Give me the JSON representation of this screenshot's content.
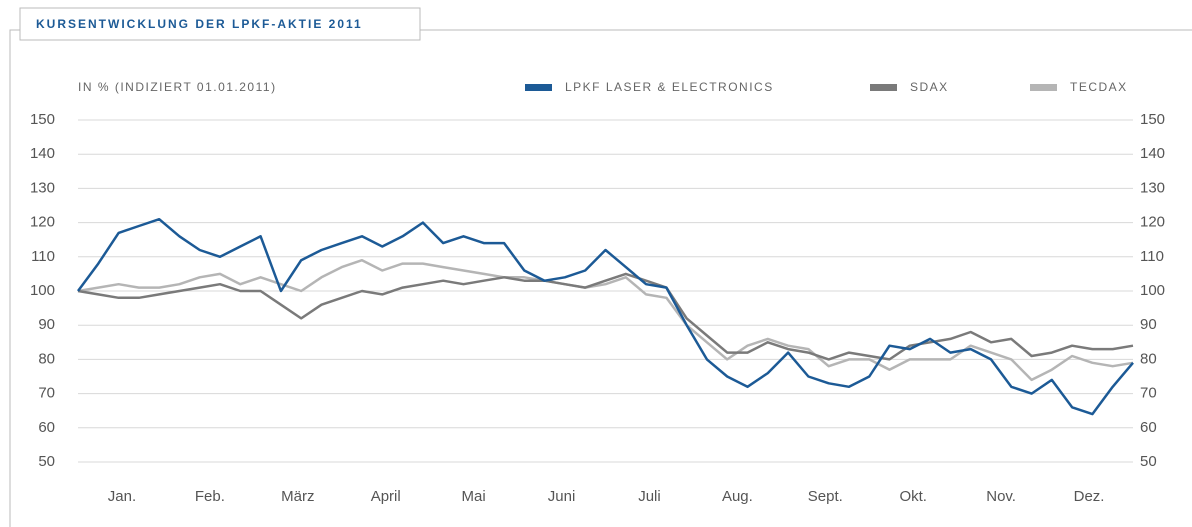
{
  "chart_data": {
    "type": "line",
    "title": "KURSENTWICKLUNG DER LPKF-AKTIE 2011",
    "y_axis_label": "IN % (INDIZIERT 01.01.2011)",
    "categories": [
      "Jan.",
      "Feb.",
      "März",
      "April",
      "Mai",
      "Juni",
      "Juli",
      "Aug.",
      "Sept.",
      "Okt.",
      "Nov.",
      "Dez."
    ],
    "x": [
      0,
      1,
      2,
      3,
      4,
      5,
      6,
      7,
      8,
      9,
      10,
      11,
      12,
      13,
      14,
      15,
      16,
      17,
      18,
      19,
      20,
      21,
      22,
      23,
      24,
      25,
      26,
      27,
      28,
      29,
      30,
      31,
      32,
      33,
      34,
      35,
      36,
      37,
      38,
      39,
      40,
      41,
      42,
      43,
      44,
      45,
      46,
      47,
      48,
      49,
      50,
      51,
      52
    ],
    "xlim": [
      0,
      52
    ],
    "ylim": [
      50,
      150
    ],
    "yticks": [
      50,
      60,
      70,
      80,
      90,
      100,
      110,
      120,
      130,
      140,
      150
    ],
    "grid": true,
    "series": [
      {
        "name": "LPKF LASER & ELECTRONICS",
        "color": "#1c5a96",
        "values": [
          100,
          108,
          117,
          119,
          121,
          116,
          112,
          110,
          113,
          116,
          100,
          109,
          112,
          114,
          116,
          113,
          116,
          120,
          114,
          116,
          114,
          114,
          106,
          103,
          104,
          106,
          112,
          107,
          102,
          101,
          90,
          80,
          75,
          72,
          76,
          82,
          75,
          73,
          72,
          75,
          84,
          83,
          86,
          82,
          83,
          80,
          72,
          70,
          74,
          66,
          64,
          72,
          79
        ]
      },
      {
        "name": "SDAX",
        "color": "#7a7a7a",
        "values": [
          100,
          99,
          98,
          98,
          99,
          100,
          101,
          102,
          100,
          100,
          96,
          92,
          96,
          98,
          100,
          99,
          101,
          102,
          103,
          102,
          103,
          104,
          103,
          103,
          102,
          101,
          103,
          105,
          103,
          101,
          92,
          87,
          82,
          82,
          85,
          83,
          82,
          80,
          82,
          81,
          80,
          84,
          85,
          86,
          88,
          85,
          86,
          81,
          82,
          84,
          83,
          83,
          84
        ]
      },
      {
        "name": "TECDAX",
        "color": "#b5b5b5",
        "values": [
          100,
          101,
          102,
          101,
          101,
          102,
          104,
          105,
          102,
          104,
          102,
          100,
          104,
          107,
          109,
          106,
          108,
          108,
          107,
          106,
          105,
          104,
          104,
          103,
          102,
          101,
          102,
          104,
          99,
          98,
          90,
          85,
          80,
          84,
          86,
          84,
          83,
          78,
          80,
          80,
          77,
          80,
          80,
          80,
          84,
          82,
          80,
          74,
          77,
          81,
          79,
          78,
          79
        ]
      }
    ]
  }
}
